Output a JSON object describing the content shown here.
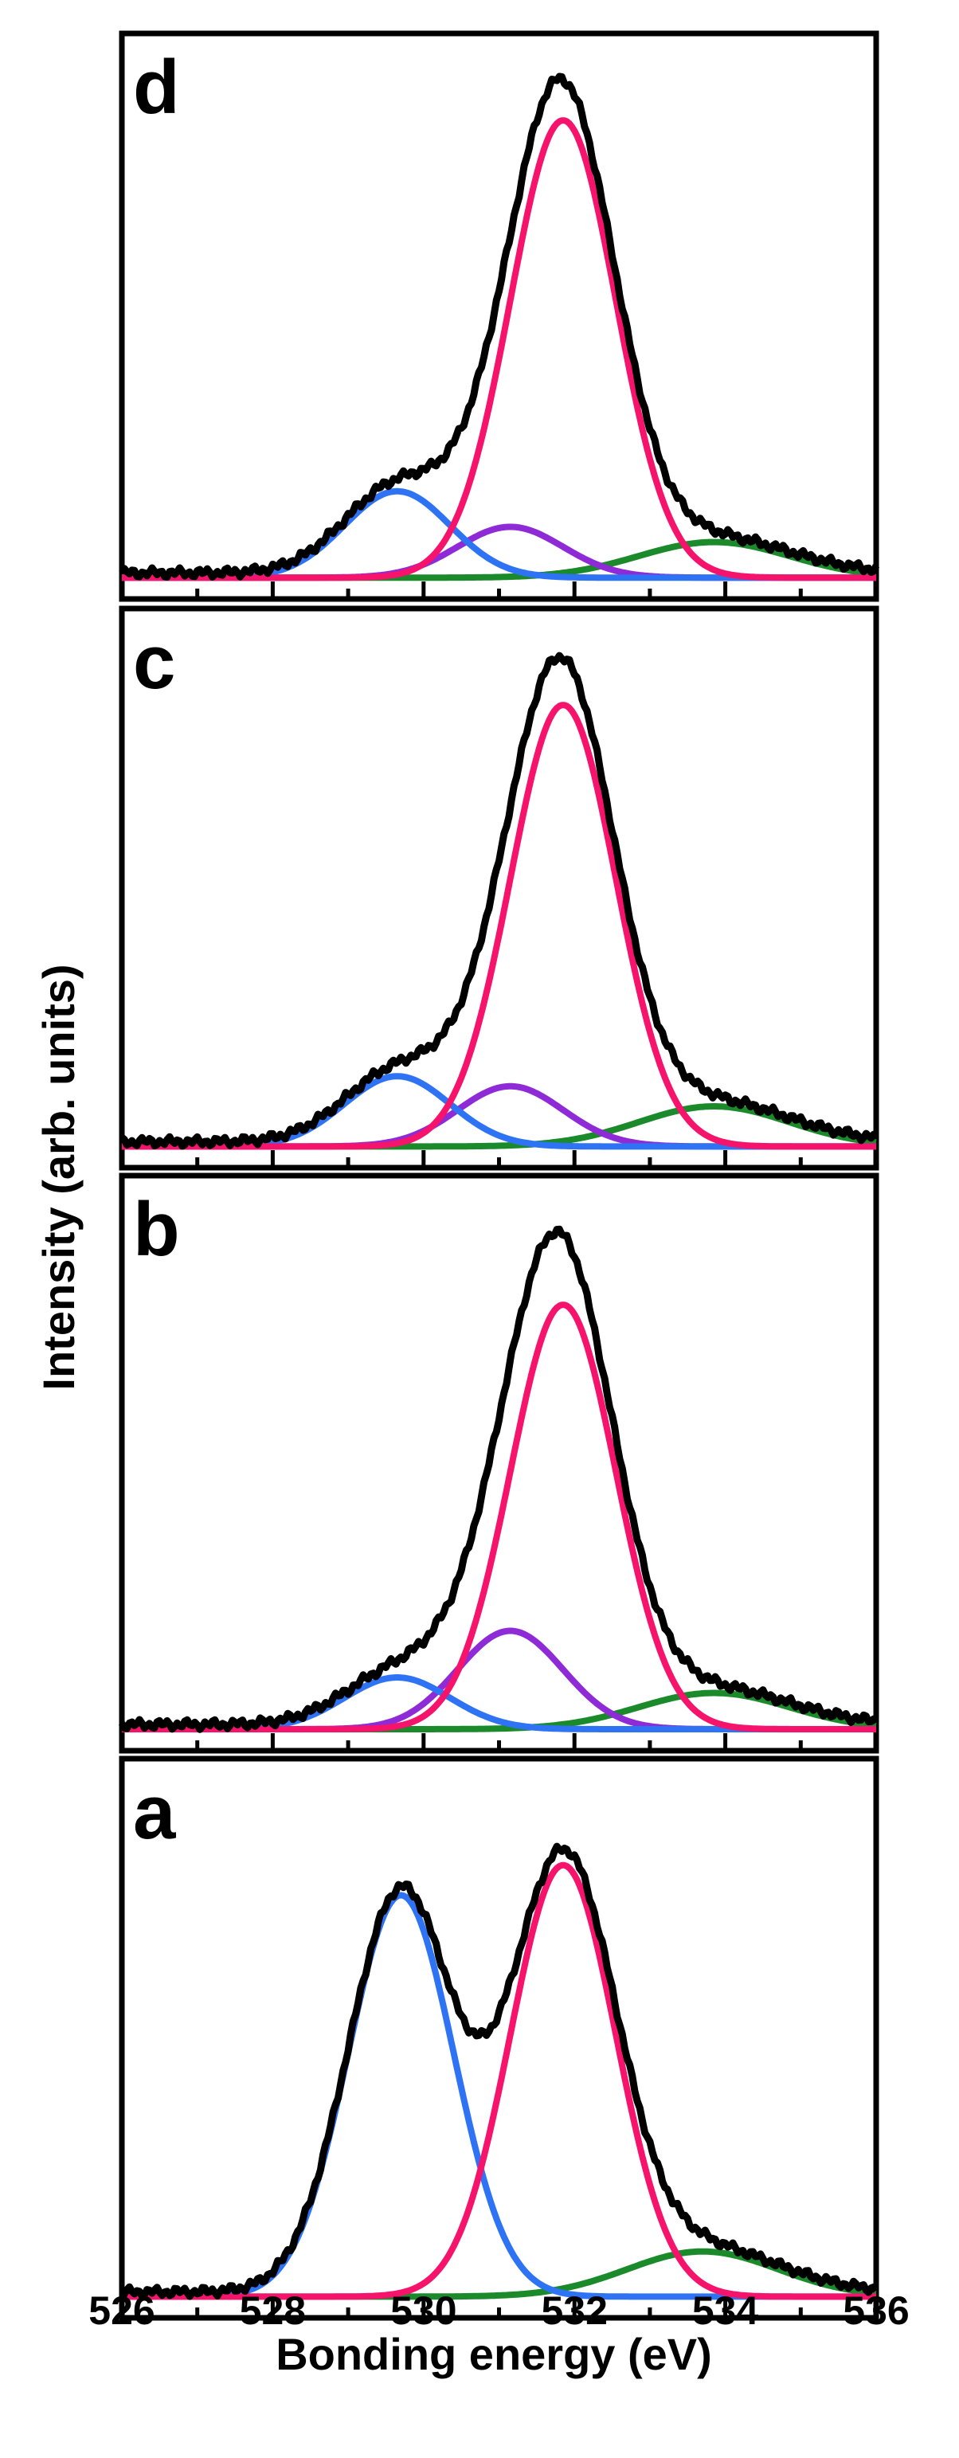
{
  "chart_data": {
    "type": "line",
    "xlabel": "Bonding energy (eV)",
    "ylabel": "Intensity (arb. units)",
    "xlim": [
      526,
      536
    ],
    "xticks": [
      526,
      528,
      530,
      532,
      534,
      536
    ],
    "tick_labels": [
      "526",
      "528",
      "530",
      "532",
      "534",
      "536"
    ],
    "series_colors": {
      "total": "#000000",
      "blue": "#2f73f5",
      "pink": "#f5136c",
      "purple": "#8e2ad6",
      "green": "#1a8a2a"
    },
    "panels": [
      {
        "label": "d",
        "baseline": 0.02,
        "components": [
          {
            "name": "blue",
            "center": 529.65,
            "height": 0.17,
            "sigma": 0.7
          },
          {
            "name": "pink",
            "center": 531.85,
            "height": 0.9,
            "sigma": 0.7
          },
          {
            "name": "purple",
            "center": 531.15,
            "height": 0.1,
            "sigma": 0.7
          },
          {
            "name": "green",
            "center": 533.85,
            "height": 0.07,
            "sigma": 1.0
          }
        ]
      },
      {
        "label": "c",
        "baseline": 0.02,
        "components": [
          {
            "name": "blue",
            "center": 529.65,
            "height": 0.14,
            "sigma": 0.7
          },
          {
            "name": "pink",
            "center": 531.85,
            "height": 0.88,
            "sigma": 0.7
          },
          {
            "name": "purple",
            "center": 531.15,
            "height": 0.12,
            "sigma": 0.7
          },
          {
            "name": "green",
            "center": 533.85,
            "height": 0.08,
            "sigma": 1.0
          }
        ]
      },
      {
        "label": "b",
        "baseline": 0.02,
        "components": [
          {
            "name": "blue",
            "center": 529.65,
            "height": 0.1,
            "sigma": 0.7
          },
          {
            "name": "pink",
            "center": 531.85,
            "height": 0.82,
            "sigma": 0.7
          },
          {
            "name": "purple",
            "center": 531.15,
            "height": 0.19,
            "sigma": 0.7
          },
          {
            "name": "green",
            "center": 533.85,
            "height": 0.07,
            "sigma": 1.0
          }
        ]
      },
      {
        "label": "a",
        "baseline": 0.02,
        "components": [
          {
            "name": "blue",
            "center": 529.7,
            "height": 0.8,
            "sigma": 0.7
          },
          {
            "name": "pink",
            "center": 531.85,
            "height": 0.86,
            "sigma": 0.7
          },
          {
            "name": "green",
            "center": 533.7,
            "height": 0.09,
            "sigma": 1.0
          }
        ]
      }
    ]
  }
}
